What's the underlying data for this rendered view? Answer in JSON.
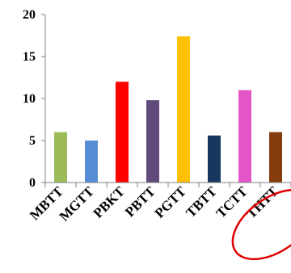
{
  "chart_data": {
    "type": "bar",
    "categories": [
      "MBTT",
      "MGTT",
      "PBKT",
      "PBTT",
      "PGTT",
      "TBTT",
      "TCTT",
      "THTT"
    ],
    "values": [
      6.0,
      5.0,
      12.0,
      9.8,
      17.4,
      5.6,
      11.0,
      6.0
    ],
    "colors": [
      "#9bbb59",
      "#558ed5",
      "#ff0000",
      "#604a7b",
      "#ffc000",
      "#17375e",
      "#e455c8",
      "#843c0c"
    ],
    "ylim": [
      0,
      20
    ],
    "yticks": [
      "0",
      "5",
      "10",
      "15",
      "20"
    ],
    "grid": false,
    "legend": "none",
    "annotation": {
      "shape": "ellipse",
      "color": "#e00000",
      "target": "THTT"
    }
  }
}
